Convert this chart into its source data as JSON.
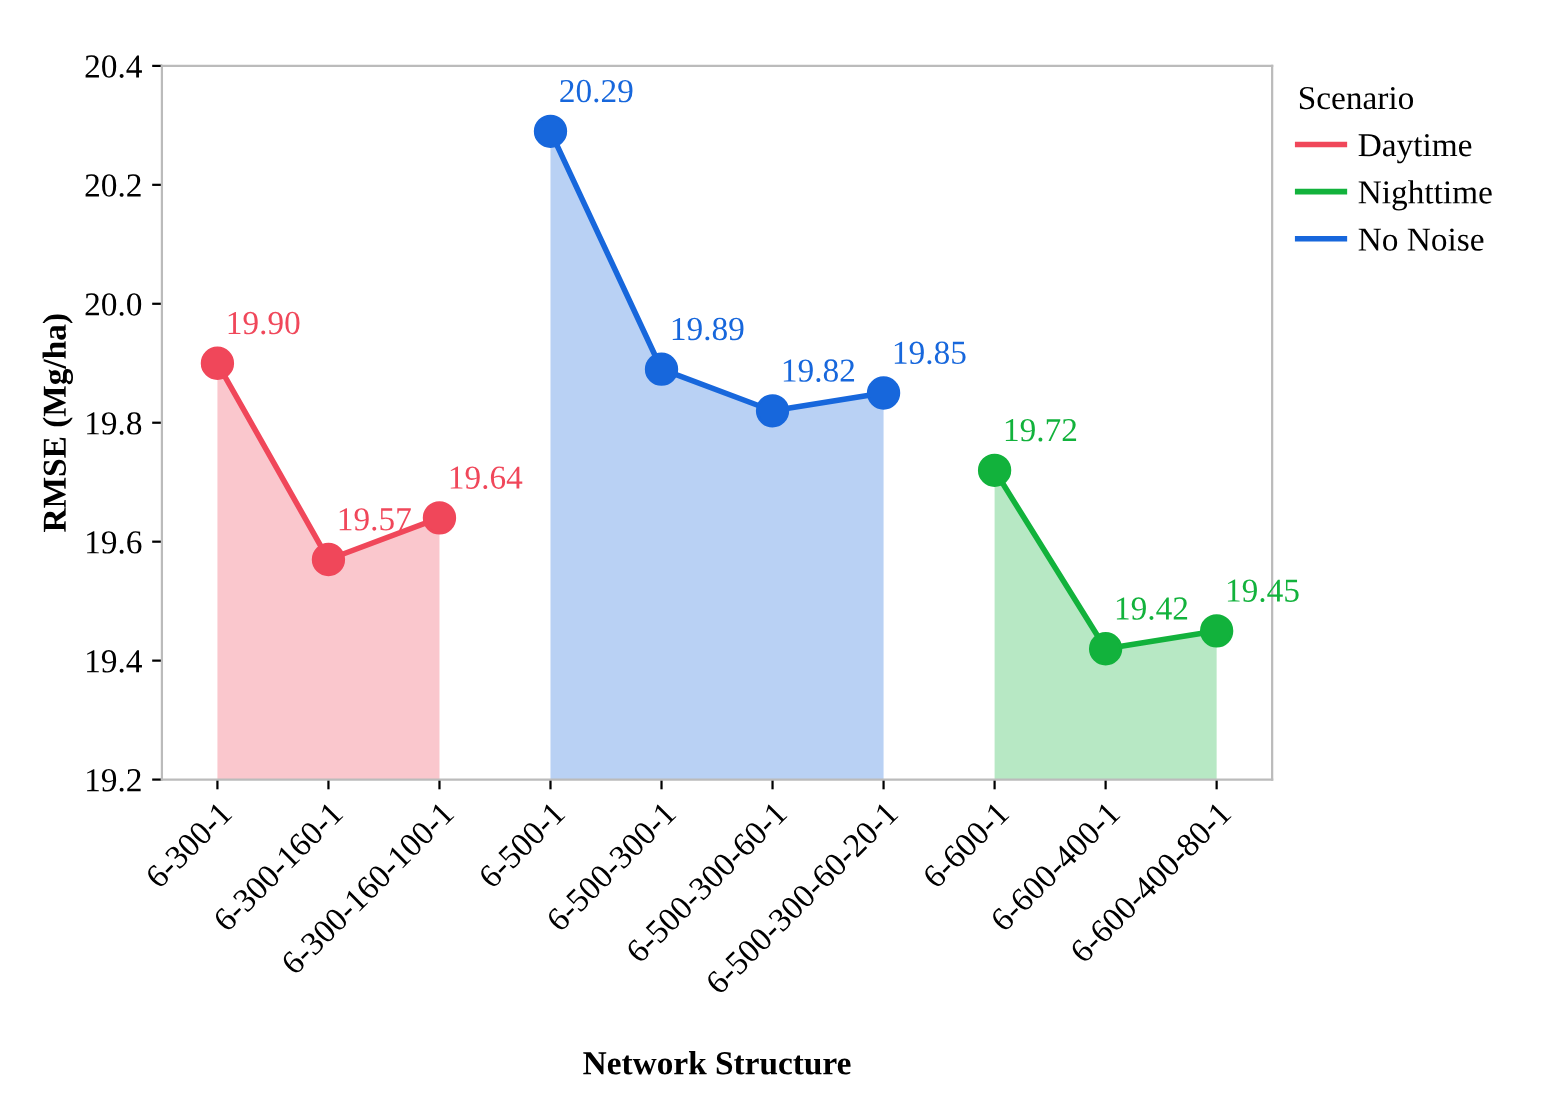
{
  "chart_data": {
    "type": "area",
    "xlabel": "Network Structure",
    "ylabel": "RMSE (Mg/ha)",
    "legend_title": "Scenario",
    "legend": "right",
    "categories": [
      "6-300-1",
      "6-300-160-1",
      "6-300-160-100-1",
      "6-500-1",
      "6-500-300-1",
      "6-500-300-60-1",
      "6-500-300-60-20-1",
      "6-600-1",
      "6-600-400-1",
      "6-600-400-80-1"
    ],
    "series": [
      {
        "name": "Daytime",
        "color": "#f0475a",
        "values": [
          19.9,
          19.57,
          19.64,
          null,
          null,
          null,
          null,
          null,
          null,
          null
        ],
        "value_labels": [
          "19.90",
          "19.57",
          "19.64",
          null,
          null,
          null,
          null,
          null,
          null,
          null
        ]
      },
      {
        "name": "Nighttime",
        "color": "#12b23c",
        "values": [
          null,
          null,
          null,
          null,
          null,
          null,
          null,
          19.72,
          19.42,
          19.45
        ],
        "value_labels": [
          null,
          null,
          null,
          null,
          null,
          null,
          null,
          "19.72",
          "19.42",
          "19.45"
        ]
      },
      {
        "name": "No Noise",
        "color": "#1767dc",
        "values": [
          null,
          null,
          null,
          20.29,
          19.89,
          19.82,
          19.85,
          null,
          null,
          null
        ],
        "value_labels": [
          null,
          null,
          null,
          "20.29",
          "19.89",
          "19.82",
          "19.85",
          null,
          null,
          null
        ]
      }
    ],
    "ylim": [
      19.2,
      20.4
    ],
    "yticks": [
      {
        "value": 19.2,
        "label": "19.2"
      },
      {
        "value": 19.4,
        "label": "19.4"
      },
      {
        "value": 19.6,
        "label": "19.6"
      },
      {
        "value": 19.8,
        "label": "19.8"
      },
      {
        "value": 20.0,
        "label": "20.0"
      },
      {
        "value": 20.2,
        "label": "20.2"
      },
      {
        "value": 20.4,
        "label": "20.4"
      }
    ],
    "marker": "circle",
    "line_style": "solid",
    "grid": false
  }
}
